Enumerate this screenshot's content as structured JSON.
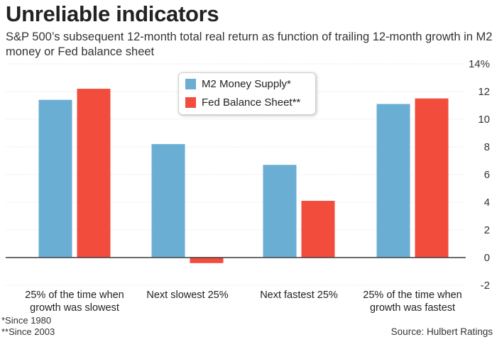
{
  "header": {
    "title": "Unreliable indicators",
    "subtitle": "S&P 500’s subsequent 12-month total real return as function of trailing 12-month growth in M2 money or Fed balance sheet"
  },
  "footer": {
    "note1": "*Since 1980",
    "note2": "**Since 2003",
    "source": "Source: Hulbert Ratings"
  },
  "colors": {
    "m2": "#6aaed3",
    "fed": "#f24c3d",
    "grid": "#e2e2e2",
    "zero": "#333333"
  },
  "chart_data": {
    "type": "bar",
    "title": "Unreliable indicators",
    "categories": [
      [
        "25% of the time when",
        "growth was slowest"
      ],
      [
        "Next slowest 25%"
      ],
      [
        "Next fastest 25%"
      ],
      [
        "25% of the time when",
        "growth was fastest"
      ]
    ],
    "series": [
      {
        "name": "M2 Money Supply*",
        "values": [
          11.4,
          8.2,
          6.7,
          11.1
        ]
      },
      {
        "name": "Fed Balance Sheet**",
        "values": [
          12.2,
          -0.4,
          4.1,
          11.5
        ]
      }
    ],
    "ylim": [
      -2,
      14
    ],
    "yticks": [
      {
        "v": 14,
        "label": "14%"
      },
      {
        "v": 12,
        "label": "12"
      },
      {
        "v": 10,
        "label": "10"
      },
      {
        "v": 8,
        "label": "8"
      },
      {
        "v": 6,
        "label": "6"
      },
      {
        "v": 4,
        "label": "4"
      },
      {
        "v": 2,
        "label": "2"
      },
      {
        "v": 0,
        "label": "0"
      },
      {
        "v": -2,
        "label": "-2"
      }
    ],
    "grid": true,
    "legend": "top-center",
    "y_axis_side": "right"
  }
}
